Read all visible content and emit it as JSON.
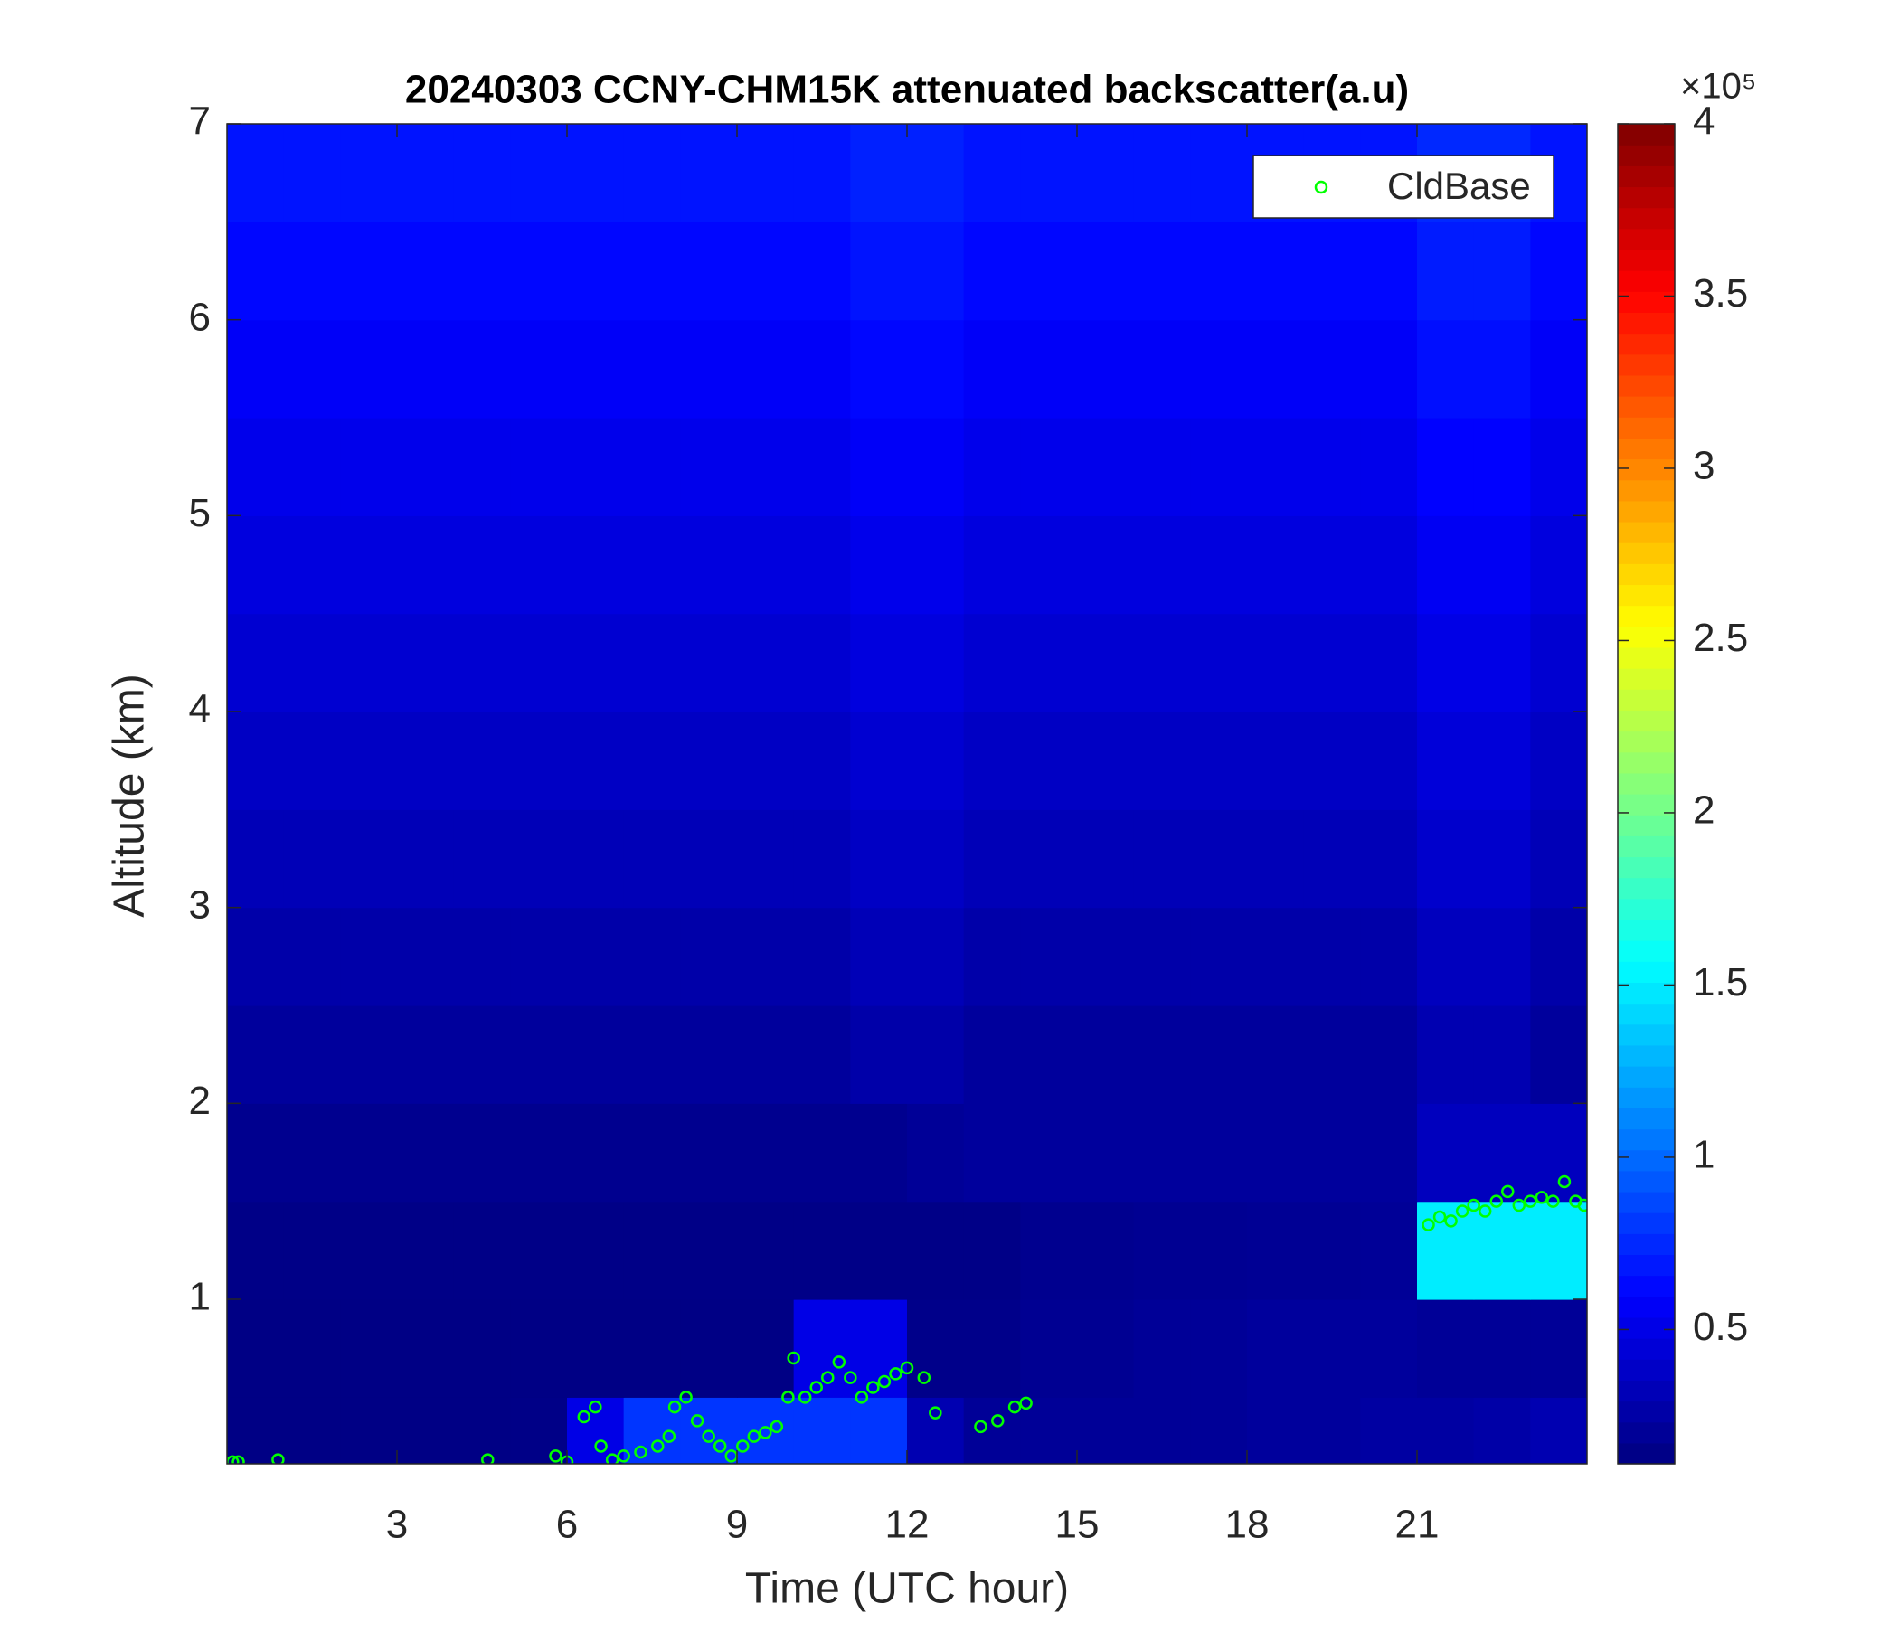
{
  "chart_data": {
    "type": "heatmap",
    "title": "20240303 CCNY-CHM15K attenuated backscatter(a.u)",
    "x_label": "Time (UTC hour)",
    "y_label": "Altitude (km)",
    "xlim": [
      0,
      24
    ],
    "ylim": [
      0.16,
      7
    ],
    "xticks": [
      3,
      6,
      9,
      12,
      15,
      18,
      21
    ],
    "yticks": [
      1,
      2,
      3,
      4,
      5,
      6,
      7
    ],
    "legend_position": "upper right",
    "heatmap": {
      "x": [
        0.5,
        1.5,
        2.5,
        3.5,
        4.5,
        5.5,
        6.5,
        7.5,
        8.5,
        9.5,
        10.5,
        11.5,
        12.5,
        13.5,
        14.5,
        15.5,
        16.5,
        17.5,
        18.5,
        19.5,
        20.5,
        21.5,
        22.5,
        23.5
      ],
      "y": [
        0.25,
        0.75,
        1.25,
        1.75,
        2.25,
        2.75,
        3.25,
        3.75,
        4.25,
        4.75,
        5.25,
        5.75,
        6.25,
        6.75
      ],
      "z": [
        [
          0.13,
          0.13,
          0.13,
          0.13,
          0.13,
          0.14,
          0.5,
          0.8,
          0.8,
          0.8,
          0.8,
          0.8,
          0.3,
          0.2,
          0.2,
          0.2,
          0.2,
          0.2,
          0.22,
          0.22,
          0.24,
          0.24,
          0.26,
          0.3
        ],
        [
          0.13,
          0.13,
          0.13,
          0.13,
          0.13,
          0.13,
          0.13,
          0.13,
          0.13,
          0.13,
          0.5,
          0.5,
          0.15,
          0.15,
          0.18,
          0.18,
          0.2,
          0.2,
          0.22,
          0.22,
          0.22,
          0.2,
          0.2,
          0.2
        ],
        [
          0.14,
          0.14,
          0.14,
          0.14,
          0.14,
          0.14,
          0.14,
          0.14,
          0.14,
          0.14,
          0.14,
          0.14,
          0.14,
          0.14,
          0.17,
          0.17,
          0.18,
          0.18,
          0.19,
          0.19,
          0.2,
          1.5,
          1.5,
          1.5
        ],
        [
          0.17,
          0.17,
          0.17,
          0.17,
          0.17,
          0.17,
          0.17,
          0.17,
          0.17,
          0.17,
          0.17,
          0.17,
          0.2,
          0.22,
          0.22,
          0.22,
          0.22,
          0.22,
          0.22,
          0.22,
          0.22,
          0.35,
          0.35,
          0.35
        ],
        [
          0.22,
          0.22,
          0.22,
          0.22,
          0.22,
          0.22,
          0.22,
          0.22,
          0.22,
          0.22,
          0.22,
          0.27,
          0.27,
          0.22,
          0.22,
          0.22,
          0.22,
          0.22,
          0.22,
          0.22,
          0.22,
          0.3,
          0.3,
          0.22
        ],
        [
          0.27,
          0.27,
          0.27,
          0.27,
          0.27,
          0.27,
          0.27,
          0.27,
          0.27,
          0.27,
          0.27,
          0.32,
          0.32,
          0.27,
          0.27,
          0.27,
          0.27,
          0.27,
          0.27,
          0.27,
          0.27,
          0.35,
          0.35,
          0.27
        ],
        [
          0.32,
          0.32,
          0.32,
          0.32,
          0.32,
          0.32,
          0.32,
          0.32,
          0.32,
          0.32,
          0.32,
          0.37,
          0.37,
          0.32,
          0.32,
          0.32,
          0.32,
          0.32,
          0.32,
          0.32,
          0.32,
          0.4,
          0.4,
          0.32
        ],
        [
          0.37,
          0.37,
          0.37,
          0.37,
          0.37,
          0.37,
          0.37,
          0.37,
          0.37,
          0.37,
          0.37,
          0.42,
          0.42,
          0.37,
          0.37,
          0.37,
          0.37,
          0.37,
          0.37,
          0.37,
          0.37,
          0.45,
          0.45,
          0.37
        ],
        [
          0.42,
          0.42,
          0.42,
          0.42,
          0.42,
          0.42,
          0.42,
          0.42,
          0.42,
          0.42,
          0.42,
          0.47,
          0.47,
          0.42,
          0.42,
          0.42,
          0.42,
          0.42,
          0.42,
          0.42,
          0.42,
          0.5,
          0.5,
          0.42
        ],
        [
          0.47,
          0.47,
          0.47,
          0.47,
          0.47,
          0.47,
          0.47,
          0.47,
          0.47,
          0.47,
          0.47,
          0.52,
          0.52,
          0.47,
          0.47,
          0.47,
          0.47,
          0.47,
          0.47,
          0.47,
          0.47,
          0.55,
          0.55,
          0.47
        ],
        [
          0.52,
          0.52,
          0.52,
          0.52,
          0.52,
          0.52,
          0.52,
          0.52,
          0.52,
          0.52,
          0.52,
          0.57,
          0.57,
          0.52,
          0.52,
          0.52,
          0.52,
          0.52,
          0.52,
          0.52,
          0.52,
          0.6,
          0.6,
          0.52
        ],
        [
          0.57,
          0.57,
          0.57,
          0.57,
          0.57,
          0.57,
          0.57,
          0.57,
          0.57,
          0.57,
          0.57,
          0.62,
          0.62,
          0.57,
          0.57,
          0.57,
          0.57,
          0.57,
          0.57,
          0.57,
          0.57,
          0.65,
          0.65,
          0.57
        ],
        [
          0.62,
          0.62,
          0.62,
          0.62,
          0.62,
          0.62,
          0.62,
          0.62,
          0.62,
          0.62,
          0.62,
          0.67,
          0.67,
          0.62,
          0.62,
          0.62,
          0.62,
          0.62,
          0.62,
          0.62,
          0.62,
          0.7,
          0.7,
          0.62
        ],
        [
          0.67,
          0.67,
          0.67,
          0.67,
          0.67,
          0.67,
          0.67,
          0.67,
          0.67,
          0.67,
          0.67,
          0.72,
          0.72,
          0.67,
          0.67,
          0.67,
          0.67,
          0.67,
          0.67,
          0.67,
          0.67,
          0.75,
          0.75,
          0.67
        ]
      ]
    },
    "colorbar": {
      "colormap": "jet",
      "clim": [
        0.11,
        4
      ],
      "ticks": [
        0.5,
        1,
        1.5,
        2,
        2.5,
        3,
        3.5,
        4
      ],
      "multiplier": "×10⁵"
    },
    "series": [
      {
        "name": "CldBase",
        "color": "#00ff00",
        "marker": "circle",
        "x": [
          0.1,
          0.2,
          0.9,
          4.6,
          5.8,
          6.0,
          6.3,
          6.5,
          6.6,
          6.8,
          7.0,
          7.3,
          7.6,
          7.8,
          7.9,
          8.1,
          8.3,
          8.5,
          8.7,
          8.9,
          9.1,
          9.3,
          9.5,
          9.7,
          9.9,
          10.0,
          10.2,
          10.4,
          10.6,
          10.8,
          11.0,
          11.2,
          11.4,
          11.6,
          11.8,
          12.0,
          12.3,
          12.5,
          13.3,
          13.6,
          13.9,
          14.1,
          21.2,
          21.4,
          21.6,
          21.8,
          22.0,
          22.2,
          22.4,
          22.6,
          22.8,
          23.0,
          23.2,
          23.4,
          23.6,
          23.8,
          23.95
        ],
        "y": [
          0.17,
          0.17,
          0.18,
          0.18,
          0.2,
          0.17,
          0.4,
          0.45,
          0.25,
          0.18,
          0.2,
          0.22,
          0.25,
          0.3,
          0.45,
          0.5,
          0.38,
          0.3,
          0.25,
          0.2,
          0.25,
          0.3,
          0.32,
          0.35,
          0.5,
          0.7,
          0.5,
          0.55,
          0.6,
          0.68,
          0.6,
          0.5,
          0.55,
          0.58,
          0.62,
          0.65,
          0.6,
          0.42,
          0.35,
          0.38,
          0.45,
          0.47,
          1.38,
          1.42,
          1.4,
          1.45,
          1.48,
          1.45,
          1.5,
          1.55,
          1.48,
          1.5,
          1.52,
          1.5,
          1.6,
          1.5,
          1.48
        ]
      }
    ]
  }
}
